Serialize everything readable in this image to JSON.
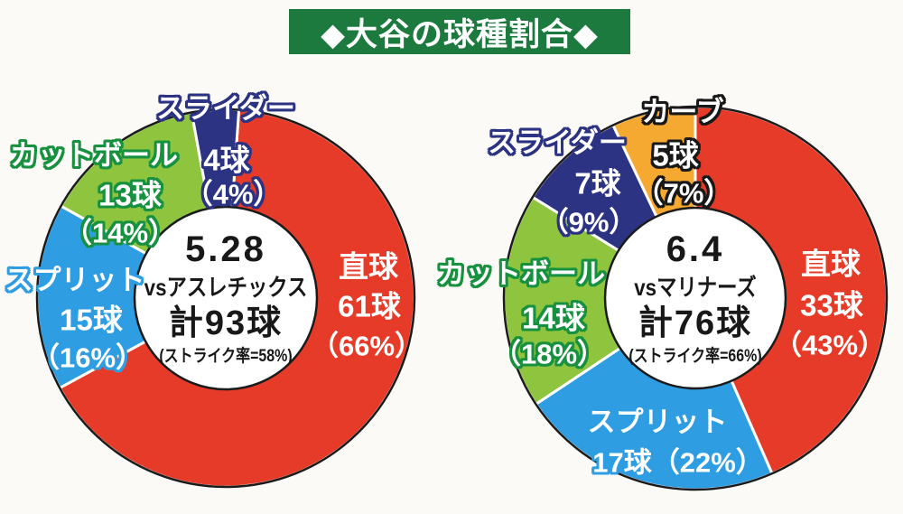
{
  "title": {
    "text": "◆大谷の球種割合◆",
    "bg_color": "#1c7a3f",
    "text_color": "#ffffff"
  },
  "chart_data": [
    {
      "type": "pie",
      "variant": "donut",
      "key": "vs-athletics",
      "center": {
        "date": "5.28",
        "opponent": "vsアスレチックス",
        "total": "計93球",
        "total_pitches": 93,
        "strike_rate": "(ストライク率=58%)",
        "strike_rate_pct": 58
      },
      "legend": "none",
      "slices": [
        {
          "key": "fastball",
          "pitch": "直球",
          "count": "61球",
          "count_n": 61,
          "pct": "（66%）",
          "pct_n": 66,
          "color": "#e63b28"
        },
        {
          "key": "splitter",
          "pitch": "スプリット",
          "count": "15球",
          "count_n": 15,
          "pct": "（16%）",
          "pct_n": 16,
          "color": "#2e9de2"
        },
        {
          "key": "cutter",
          "pitch": "カットボール",
          "count": "13球",
          "count_n": 13,
          "pct": "（14%）",
          "pct_n": 14,
          "color": "#8fc53e"
        },
        {
          "key": "slider",
          "pitch": "スライダー",
          "count": "4球",
          "count_n": 4,
          "pct": "（4%）",
          "pct_n": 4,
          "color": "#2c3383"
        }
      ]
    },
    {
      "type": "pie",
      "variant": "donut",
      "key": "vs-mariners",
      "center": {
        "date": "6.4",
        "opponent": "vsマリナーズ",
        "total": "計76球",
        "total_pitches": 76,
        "strike_rate": "(ストライク率=66%)",
        "strike_rate_pct": 66
      },
      "legend": "none",
      "slices": [
        {
          "key": "curve",
          "pitch": "カーブ",
          "count": "5球",
          "count_n": 5,
          "pct": "（7%）",
          "pct_n": 7,
          "color": "#f5a931"
        },
        {
          "key": "fastball",
          "pitch": "直球",
          "count": "33球",
          "count_n": 33,
          "pct": "（43%）",
          "pct_n": 43,
          "color": "#e63b28"
        },
        {
          "key": "splitter",
          "pitch": "スプリット",
          "count": "17球",
          "count_n": 17,
          "pct": "（22%）",
          "pct_n": 22,
          "color": "#2e9de2"
        },
        {
          "key": "cutter",
          "pitch": "カットボール",
          "count": "14球",
          "count_n": 14,
          "pct": "（18%）",
          "pct_n": 18,
          "color": "#8fc53e"
        },
        {
          "key": "slider",
          "pitch": "スライダー",
          "count": "7球",
          "count_n": 7,
          "pct": "（9%）",
          "pct_n": 9,
          "color": "#2c3383"
        }
      ]
    }
  ]
}
